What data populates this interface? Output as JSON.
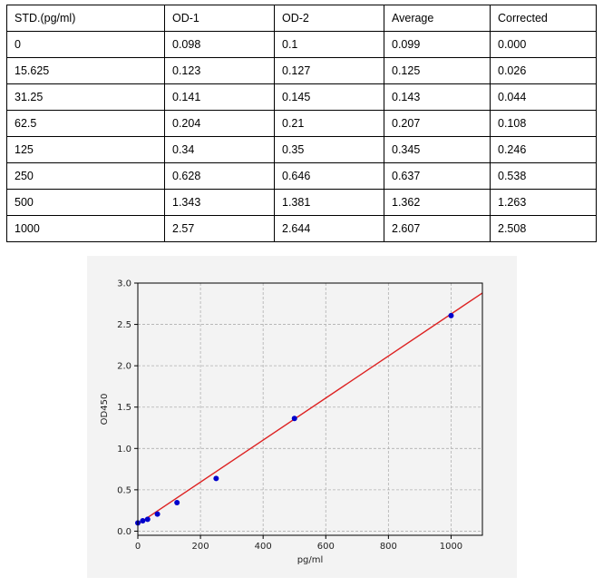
{
  "table": {
    "headers": [
      "STD.(pg/ml)",
      "OD-1",
      "OD-2",
      "Average",
      "Corrected"
    ],
    "rows": [
      [
        "0",
        "0.098",
        "0.1",
        "0.099",
        "0.000"
      ],
      [
        "15.625",
        "0.123",
        "0.127",
        "0.125",
        "0.026"
      ],
      [
        "31.25",
        "0.141",
        "0.145",
        "0.143",
        "0.044"
      ],
      [
        "62.5",
        "0.204",
        "0.21",
        "0.207",
        "0.108"
      ],
      [
        "125",
        "0.34",
        "0.35",
        "0.345",
        "0.246"
      ],
      [
        "250",
        "0.628",
        "0.646",
        "0.637",
        "0.538"
      ],
      [
        "500",
        "1.343",
        "1.381",
        "1.362",
        "1.263"
      ],
      [
        "1000",
        "2.57",
        "2.644",
        "2.607",
        "2.508"
      ]
    ]
  },
  "chart_data": {
    "type": "scatter",
    "title": "",
    "xlabel": "pg/ml",
    "ylabel": "OD450",
    "xlim": [
      0,
      1100
    ],
    "ylim": [
      -0.05,
      3.0
    ],
    "xticks": [
      "0",
      "200",
      "400",
      "600",
      "800",
      "1000"
    ],
    "yticks": [
      "0.0",
      "0.5",
      "1.0",
      "1.5",
      "2.0",
      "2.5",
      "3.0"
    ],
    "grid": true,
    "series": [
      {
        "kind": "points",
        "color": "#0000cc",
        "x": [
          0,
          15.625,
          31.25,
          62.5,
          125,
          250,
          500,
          1000
        ],
        "y": [
          0.099,
          0.125,
          0.143,
          0.207,
          0.345,
          0.637,
          1.362,
          2.607
        ]
      },
      {
        "kind": "fit-line",
        "color": "#dd2222",
        "x": [
          0,
          1100
        ],
        "y": [
          0.085,
          2.88
        ]
      }
    ]
  }
}
